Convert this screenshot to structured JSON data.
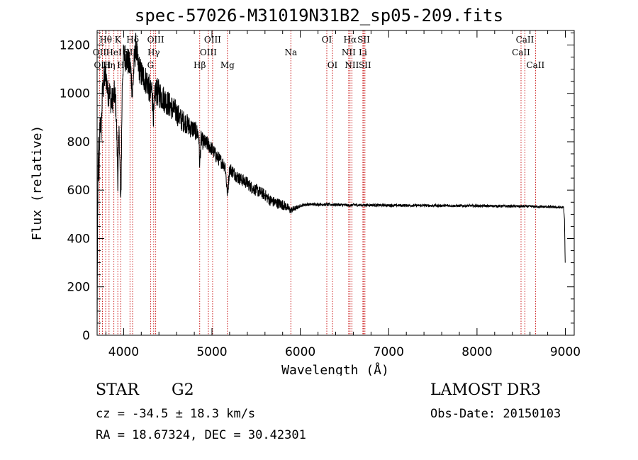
{
  "header": {
    "title": "spec-57026-M31019N31B2_sp05-209.fits"
  },
  "info": {
    "object_class": "STAR",
    "subclass": "G2",
    "survey": "LAMOST DR3",
    "redshift": "cz = -34.5 ± 18.3 km/s",
    "obs_date": "Obs-Date: 20150103",
    "coords": "RA =  18.67324, DEC =  30.42301"
  },
  "colors": {
    "spectrum": "#000000",
    "line_marker": "#cc2222",
    "axes": "#000000"
  },
  "chart_data": {
    "type": "line",
    "title": "spec-57026-M31019N31B2_sp05-209.fits",
    "xlabel": "Wavelength (Å)",
    "ylabel": "Flux (relative)",
    "xlim": [
      3700,
      9100
    ],
    "ylim": [
      0,
      1260
    ],
    "x_ticks": [
      4000,
      5000,
      6000,
      7000,
      8000,
      9000
    ],
    "y_ticks": [
      0,
      200,
      400,
      600,
      800,
      1000,
      1200
    ],
    "x_minor_step": 200,
    "y_minor_step": 50,
    "spectrum_anchors": [
      [
        3700,
        0
      ],
      [
        3705,
        420
      ],
      [
        3712,
        760
      ],
      [
        3722,
        620
      ],
      [
        3732,
        900
      ],
      [
        3745,
        840
      ],
      [
        3760,
        1000
      ],
      [
        3780,
        1060
      ],
      [
        3800,
        1080
      ],
      [
        3820,
        1000
      ],
      [
        3840,
        1010
      ],
      [
        3860,
        960
      ],
      [
        3880,
        980
      ],
      [
        3900,
        1000
      ],
      [
        3915,
        930
      ],
      [
        3935,
        640
      ],
      [
        3950,
        850
      ],
      [
        3968,
        520
      ],
      [
        3985,
        1050
      ],
      [
        4000,
        1160
      ],
      [
        4020,
        1150
      ],
      [
        4040,
        1140
      ],
      [
        4060,
        1120
      ],
      [
        4080,
        1100
      ],
      [
        4100,
        1000
      ],
      [
        4120,
        1130
      ],
      [
        4140,
        1200
      ],
      [
        4160,
        1120
      ],
      [
        4180,
        1100
      ],
      [
        4200,
        1080
      ],
      [
        4240,
        1060
      ],
      [
        4280,
        1040
      ],
      [
        4300,
        990
      ],
      [
        4320,
        1020
      ],
      [
        4340,
        900
      ],
      [
        4360,
        1010
      ],
      [
        4400,
        1000
      ],
      [
        4450,
        980
      ],
      [
        4500,
        960
      ],
      [
        4550,
        940
      ],
      [
        4600,
        920
      ],
      [
        4650,
        890
      ],
      [
        4700,
        880
      ],
      [
        4750,
        860
      ],
      [
        4800,
        850
      ],
      [
        4850,
        830
      ],
      [
        4862,
        700
      ],
      [
        4875,
        810
      ],
      [
        4900,
        800
      ],
      [
        4950,
        790
      ],
      [
        5000,
        770
      ],
      [
        5050,
        740
      ],
      [
        5100,
        720
      ],
      [
        5150,
        700
      ],
      [
        5175,
        580
      ],
      [
        5200,
        690
      ],
      [
        5250,
        670
      ],
      [
        5300,
        650
      ],
      [
        5350,
        640
      ],
      [
        5400,
        630
      ],
      [
        5450,
        610
      ],
      [
        5500,
        600
      ],
      [
        5550,
        590
      ],
      [
        5600,
        580
      ],
      [
        5650,
        560
      ],
      [
        5700,
        550
      ],
      [
        5750,
        545
      ],
      [
        5800,
        540
      ],
      [
        5850,
        530
      ],
      [
        5890,
        515
      ],
      [
        5910,
        520
      ],
      [
        5950,
        525
      ],
      [
        6000,
        535
      ],
      [
        6050,
        540
      ],
      [
        6100,
        541
      ],
      [
        6200,
        541
      ],
      [
        6300,
        540
      ],
      [
        6400,
        540
      ],
      [
        6500,
        539
      ],
      [
        6563,
        536
      ],
      [
        6600,
        539
      ],
      [
        6700,
        538
      ],
      [
        6800,
        538
      ],
      [
        7000,
        537
      ],
      [
        7500,
        536
      ],
      [
        8000,
        535
      ],
      [
        8500,
        533
      ],
      [
        8800,
        531
      ],
      [
        8980,
        528
      ],
      [
        8990,
        480
      ],
      [
        8998,
        300
      ]
    ],
    "noise_amplitude": [
      [
        3700,
        60
      ],
      [
        4400,
        60
      ],
      [
        5000,
        30
      ],
      [
        5800,
        22
      ],
      [
        6000,
        6
      ],
      [
        9000,
        5
      ]
    ],
    "spectral_lines": [
      {
        "label": "Hθ",
        "wavelength": 3797,
        "row": 0
      },
      {
        "label": "OII",
        "wavelength": 3727,
        "row": 1
      },
      {
        "label": "OIII",
        "wavelength": 3760,
        "row": 2
      },
      {
        "label": "HeI",
        "wavelength": 3889,
        "row": 1
      },
      {
        "label": "Hη",
        "wavelength": 3835,
        "row": 2
      },
      {
        "label": "K",
        "wavelength": 3934,
        "row": 0
      },
      {
        "label": "H",
        "wavelength": 3968,
        "row": 2
      },
      {
        "label": "SII",
        "wavelength": 4072,
        "row": 1
      },
      {
        "label": "Hδ",
        "wavelength": 4102,
        "row": 0
      },
      {
        "label": "OIII",
        "wavelength": 4363,
        "row": 0
      },
      {
        "label": "Hγ",
        "wavelength": 4340,
        "row": 1
      },
      {
        "label": "G",
        "wavelength": 4305,
        "row": 2
      },
      {
        "label": "Hβ",
        "wavelength": 4861,
        "row": 2
      },
      {
        "label": "OIII",
        "wavelength": 5007,
        "row": 0
      },
      {
        "label": "OIII",
        "wavelength": 4959,
        "row": 1
      },
      {
        "label": "Mg",
        "wavelength": 5175,
        "row": 2
      },
      {
        "label": "Na",
        "wavelength": 5893,
        "row": 1
      },
      {
        "label": "OI",
        "wavelength": 6300,
        "row": 0
      },
      {
        "label": "OI",
        "wavelength": 6364,
        "row": 2
      },
      {
        "label": "Hα",
        "wavelength": 6563,
        "row": 0
      },
      {
        "label": "NII",
        "wavelength": 6548,
        "row": 1
      },
      {
        "label": "NII",
        "wavelength": 6584,
        "row": 2
      },
      {
        "label": "SII",
        "wavelength": 6717,
        "row": 0
      },
      {
        "label": "Li",
        "wavelength": 6708,
        "row": 1
      },
      {
        "label": "SII",
        "wavelength": 6731,
        "row": 2
      },
      {
        "label": "CaII",
        "wavelength": 8542,
        "row": 0
      },
      {
        "label": "CaII",
        "wavelength": 8498,
        "row": 1
      },
      {
        "label": "CaII",
        "wavelength": 8662,
        "row": 2
      }
    ]
  }
}
